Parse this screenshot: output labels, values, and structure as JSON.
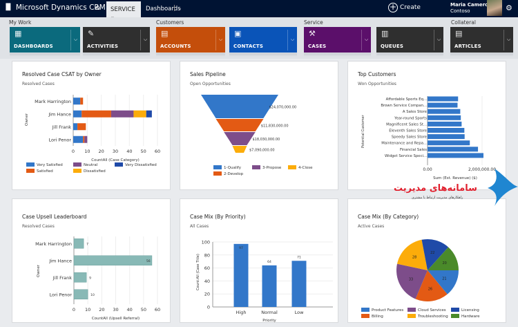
{
  "topbar": {
    "app_title": "Microsoft Dynamics CRM",
    "area": "SERVICE",
    "page": "Dashboards",
    "create_label": "Create",
    "user_name": "Maria Cameron",
    "user_org": "Contoso",
    "icons": {
      "logo": "dynamics-logo-icon",
      "home": "home-icon",
      "create": "plus-circle-icon",
      "settings": "gear-icon"
    }
  },
  "nav": {
    "groups": [
      {
        "label": "My Work"
      },
      {
        "label": "Customers"
      },
      {
        "label": "Service"
      },
      {
        "label": "Collateral"
      }
    ],
    "tiles": [
      {
        "label": "DASHBOARDS",
        "color": "#0b6a7d",
        "icon": "dashboard-icon"
      },
      {
        "label": "ACTIVITIES",
        "color": "#2f2f2f",
        "icon": "clipboard-icon"
      },
      {
        "label": "ACCOUNTS",
        "color": "#c44e0b",
        "icon": "folder-icon"
      },
      {
        "label": "CONTACTS",
        "color": "#0a54b8",
        "icon": "contact-card-icon"
      },
      {
        "label": "CASES",
        "color": "#5b0f6a",
        "icon": "case-icon"
      },
      {
        "label": "QUEUES",
        "color": "#2f2f2f",
        "icon": "queue-icon"
      },
      {
        "label": "ARTICLES",
        "color": "#2f2f2f",
        "icon": "article-icon"
      }
    ]
  },
  "cards": [
    {
      "title": "Resolved Case CSAT by Owner",
      "subtitle": "Resolved Cases"
    },
    {
      "title": "Sales Pipeline",
      "subtitle": "Open Opportunities"
    },
    {
      "title": "Top Customers",
      "subtitle": "Won Opportunities"
    },
    {
      "title": "Case Upsell Leaderboard",
      "subtitle": "Resolved Cases"
    },
    {
      "title": "Case Mix (By Priority)",
      "subtitle": "All Cases"
    },
    {
      "title": "Case Mix (By Category)",
      "subtitle": "Active Cases"
    }
  ],
  "chart_data": [
    {
      "type": "bar",
      "orientation": "horizontal",
      "stacked": true,
      "title": "Resolved Case CSAT by Owner",
      "subtitle": "Resolved Cases",
      "categories": [
        "Mark Harrington",
        "Jim Hance",
        "Jill Frank",
        "Lori Penor"
      ],
      "series": [
        {
          "name": "Very Satisfied",
          "color": "#3277c9",
          "values": [
            5,
            6,
            3,
            7
          ]
        },
        {
          "name": "Satisfied",
          "color": "#e35a14",
          "values": [
            2,
            21,
            6,
            1
          ]
        },
        {
          "name": "Neutral",
          "color": "#7d4d8a",
          "values": [
            0,
            16,
            0,
            2
          ]
        },
        {
          "name": "Dissatisfied",
          "color": "#fcac0a",
          "values": [
            0,
            9,
            0,
            0
          ]
        },
        {
          "name": "Very Dissatisfied",
          "color": "#1f4aa8",
          "values": [
            0,
            4,
            0,
            0
          ]
        }
      ],
      "xlabel": "CountAll (Case Category)",
      "ylabel": "Owner",
      "xlim": [
        0,
        60
      ],
      "xticks": [
        "0",
        "10",
        "20",
        "30",
        "40",
        "50",
        "60"
      ],
      "grid": true,
      "legend": "bottom",
      "legend_order": [
        "Very Satisfied",
        "Neutral",
        "Very Dissatisfied",
        "Satisfied",
        "Dissatisfied"
      ]
    },
    {
      "type": "funnel",
      "title": "Sales Pipeline",
      "subtitle": "Open Opportunities",
      "categories": [
        "1-Qualify",
        "2-Develop",
        "3-Propose",
        "4-Close"
      ],
      "values": [
        24070000,
        11830000,
        18030000,
        7090000
      ],
      "labels": [
        "$24,070,000.00",
        "$11,830,000.00",
        "$18,030,000.00",
        "$7,090,000.00"
      ],
      "colors": [
        "#3277c9",
        "#e35a14",
        "#7d4d8a",
        "#fcac0a"
      ],
      "legend": "bottom",
      "legend_order": [
        "1-Qualify",
        "3-Propose",
        "4-Close",
        "2-Develop"
      ]
    },
    {
      "type": "bar",
      "orientation": "horizontal",
      "title": "Top Customers",
      "subtitle": "Won Opportunities",
      "categories": [
        "Affordable Sports Eq...",
        "Brown Service Compan...",
        "A Sales Store",
        "Year-round Sports",
        "Magnificent Sales St...",
        "Eleventh Sales Store",
        "Speedy Sales Store",
        "Maintenance and Repa...",
        "Financial Sales",
        "Widget Service Speci..."
      ],
      "values": [
        1120000,
        1100000,
        1200000,
        1220000,
        1250000,
        1350000,
        1360000,
        1550000,
        1850000,
        2050000
      ],
      "color": "#3277c9",
      "xlabel": "Sum (Est. Revenue) ($)",
      "ylabel": "Potential Customer",
      "xlim": [
        0,
        2500000
      ],
      "xticks": [
        "0.00",
        "2,000,000.00"
      ],
      "grid": true
    },
    {
      "type": "bar",
      "orientation": "horizontal",
      "title": "Case Upsell Leaderboard",
      "subtitle": "Resolved Cases",
      "categories": [
        "Mark Harrington",
        "Jim Hance",
        "Jill Frank",
        "Lori Penor"
      ],
      "values": [
        7,
        56,
        9,
        10
      ],
      "color": "#88b9b6",
      "xlabel": "CountAll (Upsell Referral)",
      "ylabel": "Owner",
      "xlim": [
        0,
        60
      ],
      "xticks": [
        "0",
        "10",
        "20",
        "30",
        "40",
        "50",
        "60"
      ],
      "grid": true
    },
    {
      "type": "bar",
      "orientation": "vertical",
      "title": "Case Mix (By Priority)",
      "subtitle": "All Cases",
      "categories": [
        "High",
        "Normal",
        "Low"
      ],
      "values": [
        97,
        64,
        71
      ],
      "color": "#3277c9",
      "xlabel": "Priority",
      "ylabel": "Count:All (Case Title)",
      "ylim": [
        0,
        100
      ],
      "yticks": [
        "0",
        "20",
        "40",
        "60",
        "80",
        "100"
      ],
      "grid": true
    },
    {
      "type": "pie",
      "title": "Case Mix (By Category)",
      "subtitle": "Active Cases",
      "categories": [
        "Product Features",
        "Billing",
        "Cloud Services",
        "Troubleshooting",
        "Licensing",
        "Hardware"
      ],
      "values": [
        21,
        26,
        33,
        28,
        22,
        20
      ],
      "colors": [
        "#3277c9",
        "#e35a14",
        "#7d4d8a",
        "#fcac0a",
        "#1f4aa8",
        "#4a8a2a"
      ],
      "legend": "bottom",
      "legend_order": [
        "Product Features",
        "Cloud Services",
        "Licensing",
        "Billing",
        "Troubleshooting",
        "Hardware"
      ]
    }
  ],
  "watermark": {
    "text": "سامانه‌های مدیریت",
    "tagline": "راهکارهای مدیریت ارتباط با مشتری"
  }
}
